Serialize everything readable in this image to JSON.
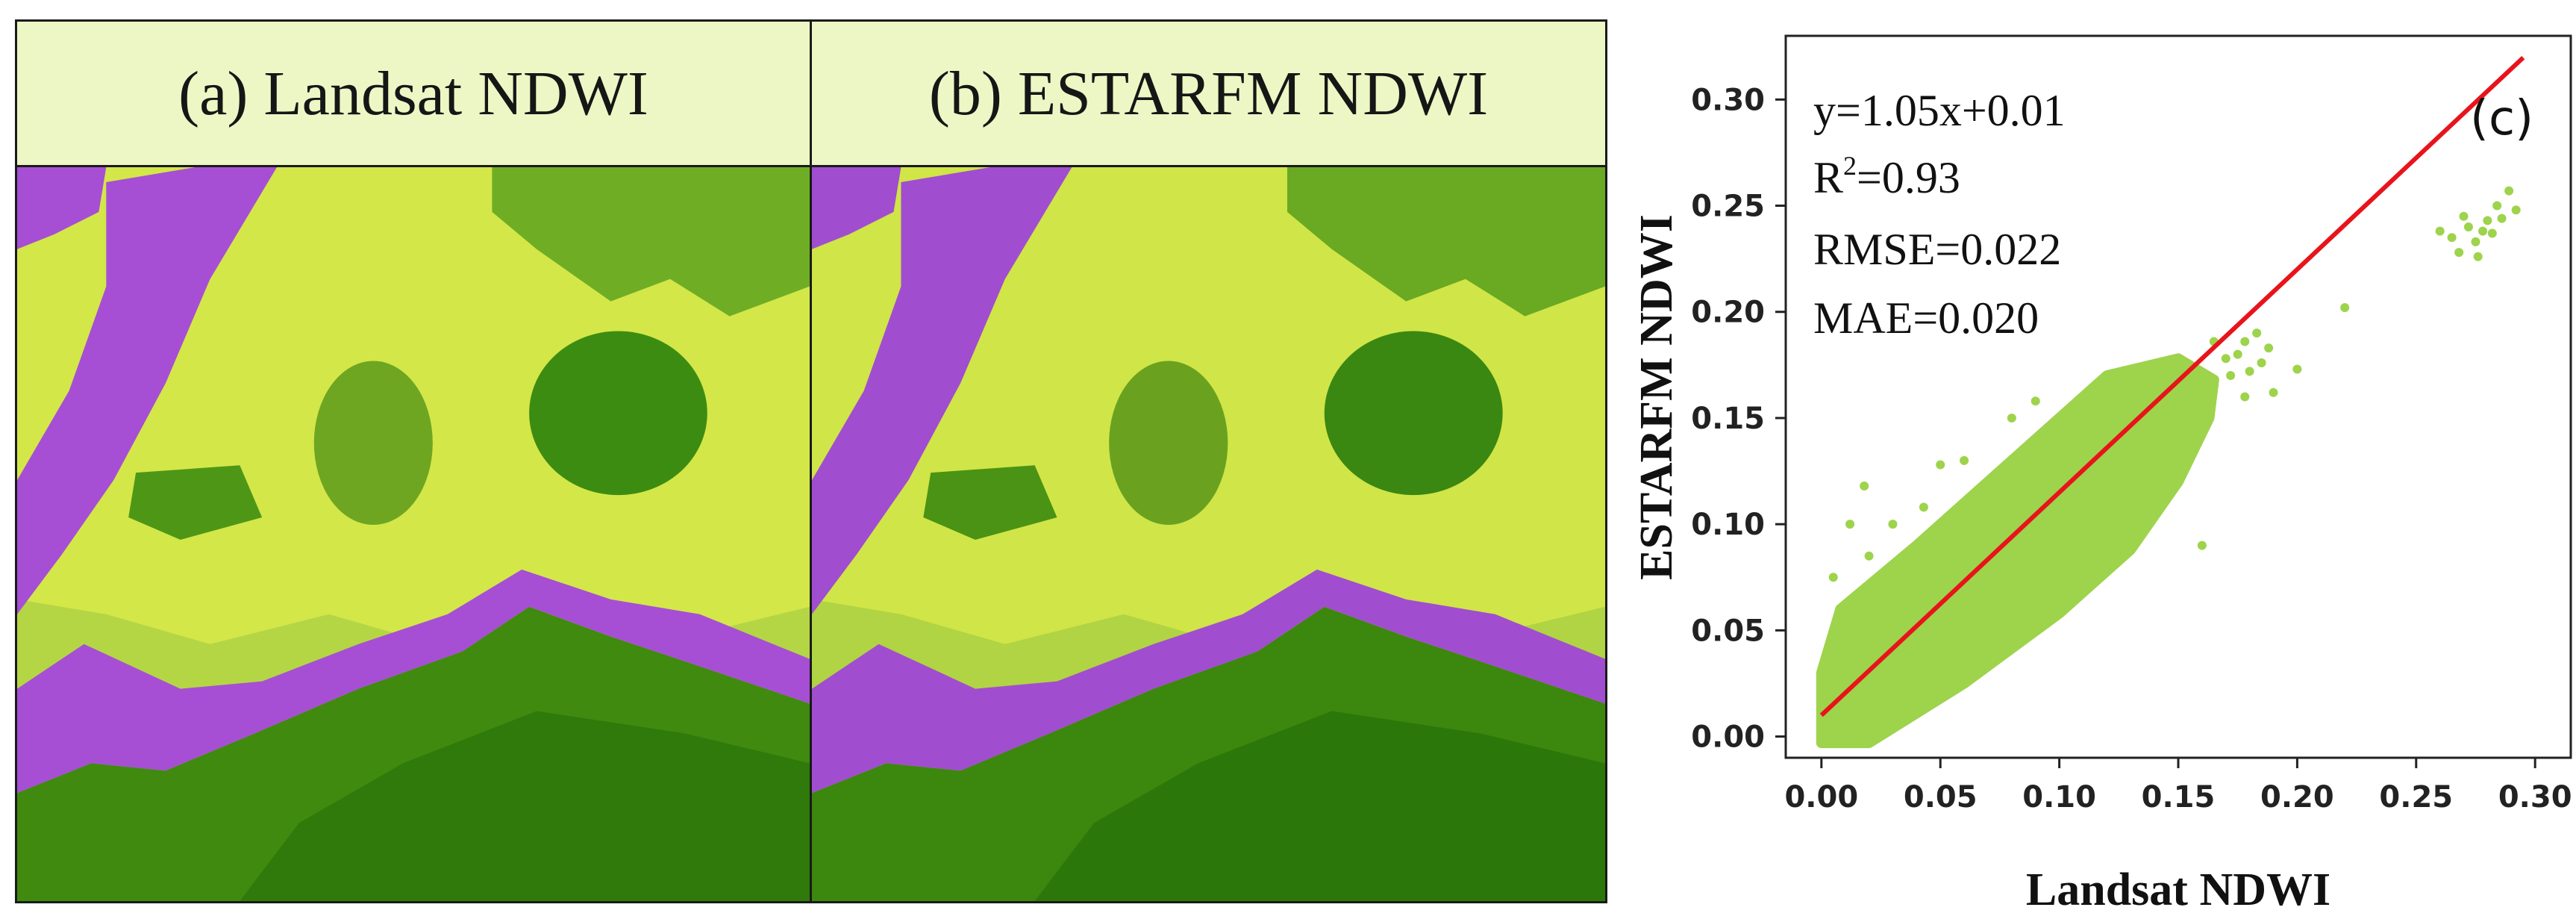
{
  "panels": {
    "a": {
      "title": "(a) Landsat NDWI"
    },
    "b": {
      "title": "(b) ESTARFM NDWI"
    }
  },
  "legend_colors": {
    "water_dark": "#2e7d0a",
    "water": "#4f9a12",
    "vegetation": "#8cc63f",
    "bright": "#e5ef45",
    "urban": "#a64fd4"
  },
  "chart_data": {
    "type": "scatter",
    "panel_label": "(c)",
    "xlabel": "Landsat NDWI",
    "ylabel": "ESTARFM NDWI",
    "xlim": [
      -0.015,
      0.315
    ],
    "ylim": [
      -0.01,
      0.33
    ],
    "xticks": [
      "0.00",
      "0.05",
      "0.10",
      "0.15",
      "0.20",
      "0.25",
      "0.30"
    ],
    "yticks": [
      "0.00",
      "0.05",
      "0.10",
      "0.15",
      "0.20",
      "0.25",
      "0.30"
    ],
    "point_color": "#9ed34c",
    "fit_color": "#e8141b",
    "fit": {
      "slope": 1.05,
      "intercept": 0.01,
      "x_range": [
        0.0,
        0.295
      ]
    },
    "stats": {
      "equation": "y=1.05x+0.01",
      "r2_prefix": "R",
      "r2_sup": "2",
      "r2_value": "=0.93",
      "rmse": "RMSE=0.022",
      "mae": "MAE=0.020"
    },
    "cloud_envelope": [
      [
        0.0,
        -0.003
      ],
      [
        0.02,
        -0.003
      ],
      [
        0.06,
        0.025
      ],
      [
        0.1,
        0.058
      ],
      [
        0.13,
        0.088
      ],
      [
        0.15,
        0.12
      ],
      [
        0.163,
        0.15
      ],
      [
        0.165,
        0.168
      ],
      [
        0.15,
        0.178
      ],
      [
        0.12,
        0.17
      ],
      [
        0.08,
        0.13
      ],
      [
        0.04,
        0.09
      ],
      [
        0.008,
        0.06
      ],
      [
        0.0,
        0.03
      ]
    ],
    "points": [
      [
        0.005,
        0.075
      ],
      [
        0.012,
        0.1
      ],
      [
        0.018,
        0.118
      ],
      [
        0.02,
        0.085
      ],
      [
        0.03,
        0.1
      ],
      [
        0.043,
        0.108
      ],
      [
        0.05,
        0.128
      ],
      [
        0.06,
        0.13
      ],
      [
        0.08,
        0.15
      ],
      [
        0.09,
        0.158
      ],
      [
        0.16,
        0.09
      ],
      [
        0.15,
        0.125
      ],
      [
        0.172,
        0.17
      ],
      [
        0.175,
        0.18
      ],
      [
        0.178,
        0.186
      ],
      [
        0.18,
        0.172
      ],
      [
        0.183,
        0.19
      ],
      [
        0.185,
        0.176
      ],
      [
        0.188,
        0.183
      ],
      [
        0.178,
        0.16
      ],
      [
        0.17,
        0.178
      ],
      [
        0.165,
        0.186
      ],
      [
        0.19,
        0.162
      ],
      [
        0.2,
        0.173
      ],
      [
        0.22,
        0.202
      ],
      [
        0.26,
        0.238
      ],
      [
        0.265,
        0.235
      ],
      [
        0.268,
        0.228
      ],
      [
        0.27,
        0.245
      ],
      [
        0.272,
        0.24
      ],
      [
        0.275,
        0.233
      ],
      [
        0.278,
        0.238
      ],
      [
        0.28,
        0.243
      ],
      [
        0.282,
        0.237
      ],
      [
        0.284,
        0.25
      ],
      [
        0.286,
        0.244
      ],
      [
        0.289,
        0.257
      ],
      [
        0.292,
        0.248
      ],
      [
        0.276,
        0.226
      ]
    ]
  }
}
